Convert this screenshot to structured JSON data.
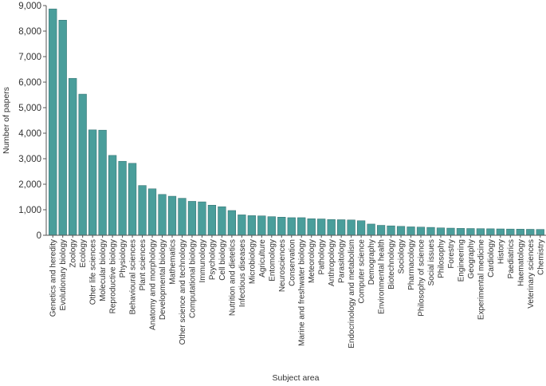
{
  "chart_data": {
    "type": "bar",
    "xlabel": "Subject area",
    "ylabel": "Number of papers",
    "ylim": [
      0,
      9000
    ],
    "yticks": [
      0,
      1000,
      2000,
      3000,
      4000,
      5000,
      6000,
      7000,
      8000,
      9000
    ],
    "ytick_labels": [
      "0",
      "1,000",
      "2,000",
      "3,000",
      "4,000",
      "5,000",
      "6,000",
      "7,000",
      "8,000",
      "9,000"
    ],
    "bar_color": "#4a9e9b",
    "grid": false,
    "categories": [
      "Genetics and heredity",
      "Evolutionary biology",
      "Zoology",
      "Ecology",
      "Other life sciences",
      "Molecular biology",
      "Reproductive biology",
      "Physiology",
      "Behavioural sciences",
      "Plant sciences",
      "Anatomy and morphology",
      "Developmental biology",
      "Mathematics",
      "Other science and technology",
      "Computational biology",
      "Immunology",
      "Psychology",
      "Cell biology",
      "Nutrition and dietetics",
      "Infectious diseases",
      "Microbiology",
      "Agriculture",
      "Entomology",
      "Neurosciences",
      "Conservation",
      "Marine and freshwater biology",
      "Meteorology",
      "Pathology",
      "Anthropology",
      "Parasitology",
      "Endocrinology and metabolism",
      "Computer science",
      "Demography",
      "Environmental health",
      "Biotechnology",
      "Sociology",
      "Pharmacology",
      "Philosophy of science",
      "Social issues",
      "Philosophy",
      "Forestry",
      "Engineering",
      "Geography",
      "Experimental medicine",
      "Cardiology",
      "History",
      "Paediatrics",
      "Haematology",
      "Veterinary sciences",
      "Chemistry"
    ],
    "values": [
      8870,
      8430,
      6150,
      5530,
      4130,
      4120,
      3130,
      2900,
      2820,
      1950,
      1820,
      1600,
      1530,
      1450,
      1330,
      1310,
      1180,
      1120,
      970,
      800,
      770,
      760,
      730,
      710,
      690,
      690,
      650,
      640,
      620,
      610,
      600,
      570,
      440,
      390,
      370,
      350,
      330,
      320,
      310,
      290,
      280,
      270,
      265,
      260,
      255,
      250,
      245,
      240,
      235,
      230
    ]
  }
}
